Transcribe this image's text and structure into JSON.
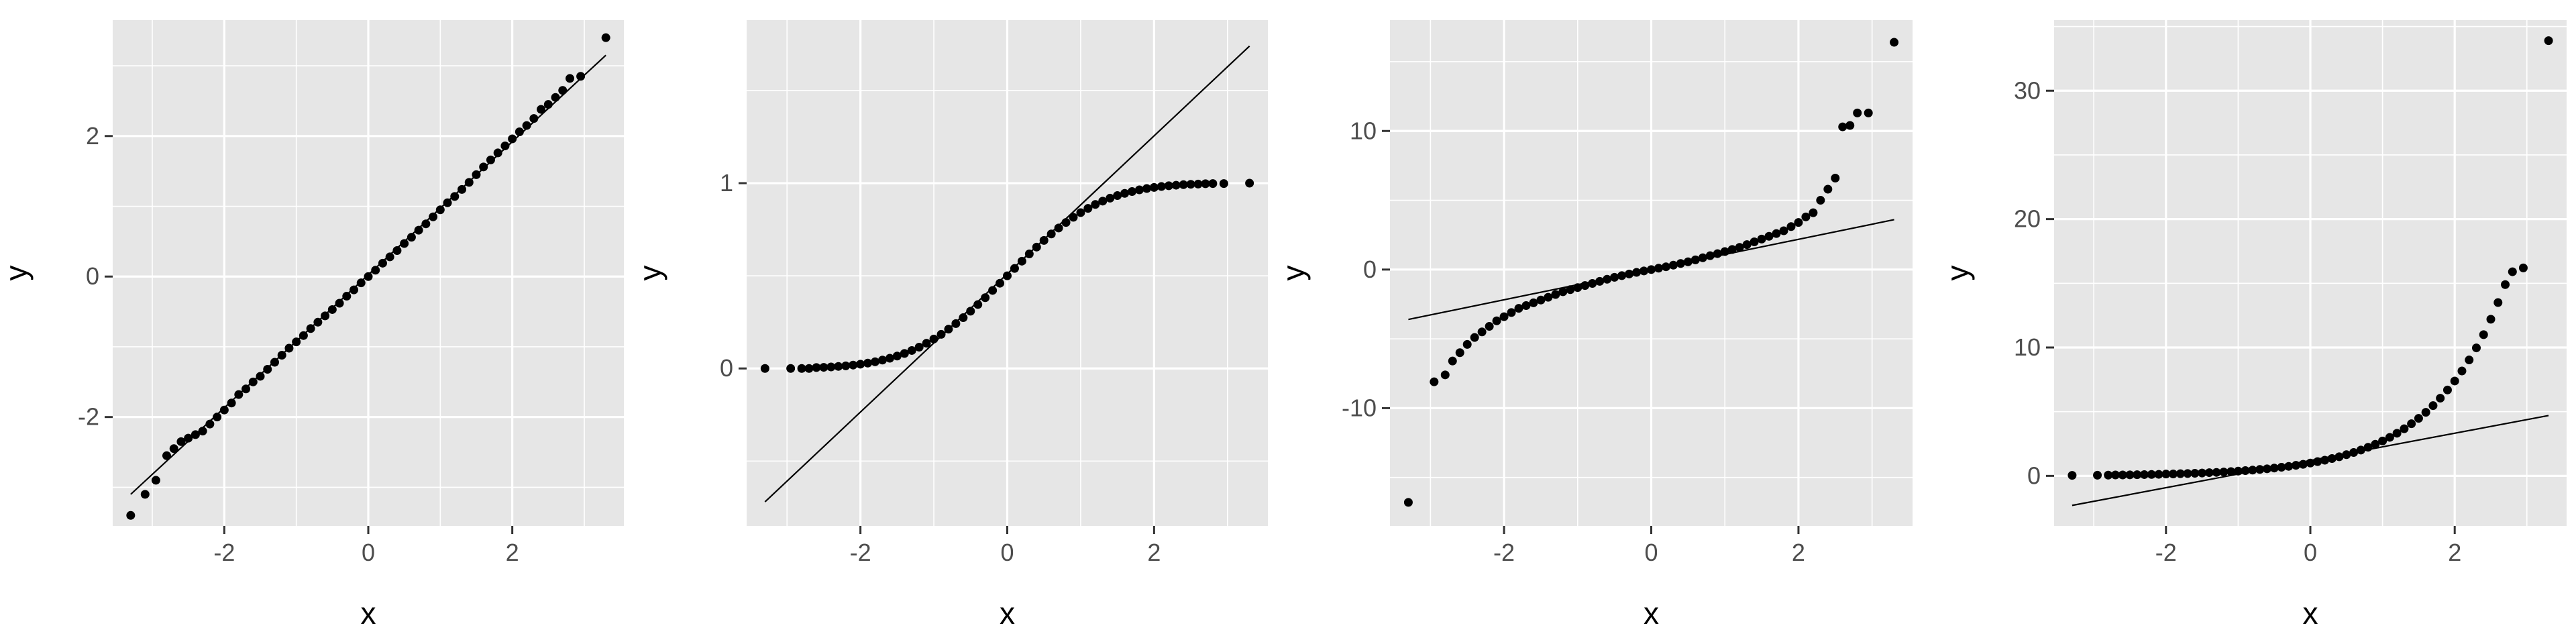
{
  "chart_data": [
    {
      "type": "scatter",
      "xlabel": "x",
      "ylabel": "y",
      "xlim": [
        -3.55,
        3.55
      ],
      "ylim": [
        -3.55,
        3.65
      ],
      "x_ticks": [
        -2,
        0,
        2
      ],
      "y_ticks": [
        -2,
        0,
        2
      ],
      "x_tick_labels": [
        "-2",
        "0",
        "2"
      ],
      "y_tick_labels": [
        "-2",
        "0",
        "2"
      ],
      "reference_line": {
        "x": [
          -3.3,
          3.3
        ],
        "y": [
          -3.1,
          3.15
        ]
      },
      "series": [
        {
          "x": [
            -3.3,
            -3.1,
            -2.95,
            -2.8,
            -2.7,
            -2.6,
            -2.5,
            -2.4,
            -2.3,
            -2.2,
            -2.1,
            -2.0,
            -1.9,
            -1.8,
            -1.7,
            -1.6,
            -1.5,
            -1.4,
            -1.3,
            -1.2,
            -1.1,
            -1.0,
            -0.9,
            -0.8,
            -0.7,
            -0.6,
            -0.5,
            -0.4,
            -0.3,
            -0.2,
            -0.1,
            0.0,
            0.1,
            0.2,
            0.3,
            0.4,
            0.5,
            0.6,
            0.7,
            0.8,
            0.9,
            1.0,
            1.1,
            1.2,
            1.3,
            1.4,
            1.5,
            1.6,
            1.7,
            1.8,
            1.9,
            2.0,
            2.1,
            2.2,
            2.3,
            2.4,
            2.5,
            2.6,
            2.7,
            2.8,
            2.95,
            3.3
          ],
          "y": [
            -3.4,
            -3.1,
            -2.9,
            -2.55,
            -2.45,
            -2.35,
            -2.3,
            -2.25,
            -2.2,
            -2.1,
            -2.0,
            -1.9,
            -1.8,
            -1.68,
            -1.6,
            -1.5,
            -1.42,
            -1.32,
            -1.22,
            -1.12,
            -1.02,
            -0.93,
            -0.84,
            -0.74,
            -0.65,
            -0.56,
            -0.47,
            -0.38,
            -0.28,
            -0.19,
            -0.09,
            0.0,
            0.09,
            0.19,
            0.28,
            0.37,
            0.47,
            0.56,
            0.66,
            0.75,
            0.85,
            0.95,
            1.05,
            1.14,
            1.24,
            1.34,
            1.45,
            1.56,
            1.66,
            1.76,
            1.86,
            1.96,
            2.06,
            2.15,
            2.25,
            2.38,
            2.45,
            2.55,
            2.65,
            2.82,
            2.85,
            3.4
          ]
        }
      ]
    },
    {
      "type": "scatter",
      "xlabel": "x",
      "ylabel": "y",
      "xlim": [
        -3.55,
        3.55
      ],
      "ylim": [
        -0.85,
        1.88
      ],
      "x_ticks": [
        -2,
        0,
        2
      ],
      "y_ticks": [
        0,
        1
      ],
      "x_tick_labels": [
        "-2",
        "0",
        "2"
      ],
      "y_tick_labels": [
        "0",
        "1"
      ],
      "reference_line": {
        "x": [
          -3.3,
          3.3
        ],
        "y": [
          -0.72,
          1.74
        ]
      },
      "series": [
        {
          "x": [
            -3.3,
            -2.95,
            -2.8,
            -2.7,
            -2.6,
            -2.5,
            -2.4,
            -2.3,
            -2.2,
            -2.1,
            -2.0,
            -1.9,
            -1.8,
            -1.7,
            -1.6,
            -1.5,
            -1.4,
            -1.3,
            -1.2,
            -1.1,
            -1.0,
            -0.9,
            -0.8,
            -0.7,
            -0.6,
            -0.5,
            -0.4,
            -0.3,
            -0.2,
            -0.1,
            0.0,
            0.1,
            0.2,
            0.3,
            0.4,
            0.5,
            0.6,
            0.7,
            0.8,
            0.9,
            1.0,
            1.1,
            1.2,
            1.3,
            1.4,
            1.5,
            1.6,
            1.7,
            1.8,
            1.9,
            2.0,
            2.1,
            2.2,
            2.3,
            2.4,
            2.5,
            2.6,
            2.7,
            2.8,
            2.95,
            3.3
          ],
          "y": [
            0.0,
            0.0,
            0.0,
            0.0,
            0.005,
            0.006,
            0.008,
            0.011,
            0.014,
            0.018,
            0.023,
            0.029,
            0.036,
            0.045,
            0.055,
            0.067,
            0.081,
            0.097,
            0.115,
            0.136,
            0.159,
            0.184,
            0.212,
            0.242,
            0.274,
            0.309,
            0.345,
            0.382,
            0.421,
            0.46,
            0.5,
            0.54,
            0.579,
            0.618,
            0.655,
            0.691,
            0.726,
            0.758,
            0.788,
            0.816,
            0.841,
            0.864,
            0.885,
            0.903,
            0.919,
            0.933,
            0.945,
            0.955,
            0.964,
            0.971,
            0.977,
            0.982,
            0.986,
            0.989,
            0.992,
            0.994,
            0.995,
            0.997,
            0.998,
            0.998,
            1.0
          ]
        }
      ]
    },
    {
      "type": "scatter",
      "xlabel": "x",
      "ylabel": "y",
      "xlim": [
        -3.55,
        3.55
      ],
      "ylim": [
        -18.5,
        18.0
      ],
      "x_ticks": [
        -2,
        0,
        2
      ],
      "y_ticks": [
        -10,
        0,
        10
      ],
      "x_tick_labels": [
        "-2",
        "0",
        "2"
      ],
      "y_tick_labels": [
        "-10",
        "0",
        "10"
      ],
      "reference_line": {
        "x": [
          -3.3,
          3.3
        ],
        "y": [
          -3.6,
          3.6
        ]
      },
      "series": [
        {
          "x": [
            -3.3,
            -2.95,
            -2.8,
            -2.7,
            -2.6,
            -2.5,
            -2.4,
            -2.3,
            -2.2,
            -2.1,
            -2.0,
            -1.9,
            -1.8,
            -1.7,
            -1.6,
            -1.5,
            -1.4,
            -1.3,
            -1.2,
            -1.1,
            -1.0,
            -0.9,
            -0.8,
            -0.7,
            -0.6,
            -0.5,
            -0.4,
            -0.3,
            -0.2,
            -0.1,
            0.0,
            0.1,
            0.2,
            0.3,
            0.4,
            0.5,
            0.6,
            0.7,
            0.8,
            0.9,
            1.0,
            1.1,
            1.2,
            1.3,
            1.4,
            1.5,
            1.6,
            1.7,
            1.8,
            1.9,
            2.0,
            2.1,
            2.2,
            2.3,
            2.4,
            2.5,
            2.6,
            2.7,
            2.8,
            2.95,
            3.3
          ],
          "y": [
            -16.8,
            -8.1,
            -7.6,
            -6.6,
            -6.0,
            -5.4,
            -4.9,
            -4.5,
            -4.1,
            -3.7,
            -3.4,
            -3.1,
            -2.8,
            -2.6,
            -2.4,
            -2.2,
            -2.0,
            -1.8,
            -1.6,
            -1.45,
            -1.3,
            -1.15,
            -1.0,
            -0.85,
            -0.7,
            -0.56,
            -0.44,
            -0.32,
            -0.2,
            -0.1,
            0.0,
            0.1,
            0.2,
            0.32,
            0.44,
            0.56,
            0.7,
            0.85,
            1.0,
            1.15,
            1.3,
            1.45,
            1.6,
            1.8,
            2.0,
            2.2,
            2.4,
            2.6,
            2.8,
            3.1,
            3.4,
            3.8,
            4.1,
            5.0,
            5.8,
            6.6,
            10.3,
            10.4,
            11.3,
            11.3,
            16.4
          ]
        }
      ]
    },
    {
      "type": "scatter",
      "xlabel": "x",
      "ylabel": "y",
      "xlim": [
        -3.55,
        3.55
      ],
      "ylim": [
        -3.9,
        35.5
      ],
      "x_ticks": [
        -2,
        0,
        2
      ],
      "y_ticks": [
        0,
        10,
        20,
        30
      ],
      "x_tick_labels": [
        "-2",
        "0",
        "2"
      ],
      "y_tick_labels": [
        "0",
        "10",
        "20",
        "30"
      ],
      "reference_line": {
        "x": [
          -3.3,
          3.3
        ],
        "y": [
          -2.3,
          4.7
        ]
      },
      "series": [
        {
          "x": [
            -3.3,
            -2.95,
            -2.8,
            -2.7,
            -2.6,
            -2.5,
            -2.4,
            -2.3,
            -2.2,
            -2.1,
            -2.0,
            -1.9,
            -1.8,
            -1.7,
            -1.6,
            -1.5,
            -1.4,
            -1.3,
            -1.2,
            -1.1,
            -1.0,
            -0.9,
            -0.8,
            -0.7,
            -0.6,
            -0.5,
            -0.4,
            -0.3,
            -0.2,
            -0.1,
            0.0,
            0.1,
            0.2,
            0.3,
            0.4,
            0.5,
            0.6,
            0.7,
            0.8,
            0.9,
            1.0,
            1.1,
            1.2,
            1.3,
            1.4,
            1.5,
            1.6,
            1.7,
            1.8,
            1.9,
            2.0,
            2.1,
            2.2,
            2.3,
            2.4,
            2.5,
            2.6,
            2.7,
            2.8,
            2.95,
            3.3
          ],
          "y": [
            0.04,
            0.05,
            0.06,
            0.07,
            0.07,
            0.08,
            0.09,
            0.1,
            0.11,
            0.12,
            0.14,
            0.15,
            0.17,
            0.18,
            0.2,
            0.22,
            0.25,
            0.27,
            0.3,
            0.33,
            0.37,
            0.41,
            0.45,
            0.5,
            0.55,
            0.61,
            0.67,
            0.74,
            0.82,
            0.9,
            1.0,
            1.11,
            1.22,
            1.35,
            1.49,
            1.65,
            1.82,
            2.01,
            2.23,
            2.46,
            2.72,
            3.0,
            3.32,
            3.67,
            4.06,
            4.48,
            4.95,
            5.47,
            6.05,
            6.69,
            7.39,
            8.17,
            9.03,
            9.97,
            11.0,
            12.2,
            13.5,
            14.9,
            15.9,
            16.2,
            33.9
          ]
        }
      ]
    }
  ]
}
